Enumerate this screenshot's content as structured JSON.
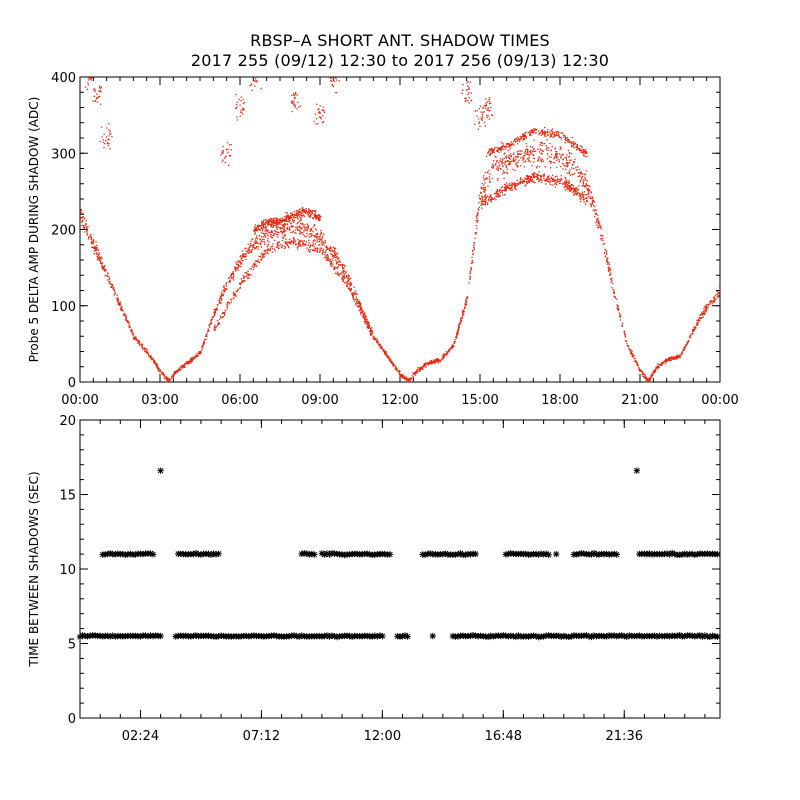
{
  "title_line1": "RBSP–A SHORT ANT. SHADOW TIMES",
  "title_line2": "2017 255 (09/12) 12:30 to 2017 256 (09/13) 12:30",
  "colors": {
    "top_points": "#e8280f",
    "bottom_points": "#000000",
    "axes": "#000000"
  },
  "chart_data": [
    {
      "type": "scatter",
      "ylabel": "Probe 5 DELTA AMP DURING SHADOW (ADC)",
      "xlabel": "",
      "xlim": [
        0,
        24
      ],
      "ylim": [
        0,
        400
      ],
      "x_unit": "hours",
      "xtick_values": [
        0,
        3,
        6,
        9,
        12,
        15,
        18,
        21,
        24
      ],
      "xtick_labels": [
        "00:00",
        "03:00",
        "06:00",
        "09:00",
        "12:00",
        "15:00",
        "18:00",
        "21:00",
        "00:00"
      ],
      "ytick_values": [
        0,
        100,
        200,
        300,
        400
      ],
      "ytick_labels": [
        "0",
        "100",
        "200",
        "300",
        "400"
      ],
      "marker": "dot",
      "color": "#e8280f",
      "series": [
        {
          "name": "main",
          "x": [
            0,
            0.5,
            1.0,
            1.5,
            2.0,
            2.5,
            3.0,
            3.3,
            3.6,
            4.0,
            4.5,
            5.0,
            5.5,
            6.0,
            6.5,
            7.0,
            7.5,
            8.0,
            8.5,
            9.0,
            9.5,
            10.0,
            10.5,
            11.0,
            11.5,
            12.0,
            12.3,
            12.6,
            13.0,
            13.5,
            14.0,
            14.5,
            15.0,
            15.5,
            16.0,
            16.5,
            17.0,
            17.5,
            18.0,
            18.5,
            19.0,
            19.5,
            20.0,
            20.5,
            21.0,
            21.3,
            21.6,
            22.0,
            22.5,
            23.0,
            23.5,
            24.0
          ],
          "y": [
            220,
            180,
            140,
            100,
            60,
            40,
            15,
            2,
            15,
            25,
            40,
            90,
            130,
            160,
            180,
            195,
            200,
            205,
            200,
            190,
            170,
            140,
            100,
            60,
            35,
            10,
            2,
            15,
            25,
            30,
            50,
            110,
            250,
            280,
            290,
            295,
            300,
            300,
            295,
            285,
            260,
            200,
            120,
            50,
            15,
            2,
            20,
            30,
            35,
            70,
            100,
            120
          ]
        },
        {
          "name": "lower_band",
          "x": [
            5.0,
            6.0,
            7.0,
            8.0,
            9.0,
            10.0,
            11.0,
            15.0,
            16.0,
            17.0,
            18.0,
            19.0
          ],
          "y": [
            70,
            130,
            175,
            185,
            175,
            130,
            60,
            235,
            255,
            270,
            265,
            240
          ]
        },
        {
          "name": "upper_band",
          "x": [
            6.5,
            7.0,
            7.5,
            8.0,
            8.5,
            9.0,
            15.2,
            16.0,
            17.0,
            18.0,
            19.0
          ],
          "y": [
            200,
            210,
            212,
            220,
            225,
            215,
            300,
            310,
            330,
            325,
            300
          ]
        },
        {
          "name": "high_spikes",
          "x": [
            0.3,
            0.6,
            1.0,
            5.5,
            6.0,
            6.5,
            8.0,
            9.0,
            9.5,
            14.5,
            15.0,
            15.3
          ],
          "y": [
            400,
            380,
            320,
            300,
            360,
            400,
            370,
            350,
            400,
            380,
            350,
            360
          ]
        }
      ]
    },
    {
      "type": "scatter",
      "ylabel": "TIME BETWEEN SHADOWS (SEC)",
      "xlabel": "",
      "xlim": [
        0,
        25.4
      ],
      "ylim": [
        0,
        20
      ],
      "x_unit": "hours",
      "xtick_values": [
        2.4,
        7.2,
        12.0,
        16.8,
        21.6
      ],
      "xtick_labels": [
        "02:24",
        "07:12",
        "12:00",
        "16:48",
        "21:36"
      ],
      "ytick_values": [
        0,
        5,
        10,
        15,
        20
      ],
      "ytick_labels": [
        "0",
        "5",
        "10",
        "15",
        "20"
      ],
      "marker": "asterisk",
      "color": "#000000",
      "series": [
        {
          "name": "base_interval",
          "value": 5.5,
          "segments": [
            [
              0,
              3.3
            ],
            [
              3.8,
              12.0
            ],
            [
              12.6,
              13.0
            ],
            [
              14.8,
              25.4
            ]
          ],
          "isolated_x": [
            14.0
          ]
        },
        {
          "name": "double_interval",
          "value": 11,
          "segments": [
            [
              0.9,
              3.0
            ],
            [
              3.9,
              5.5
            ],
            [
              8.8,
              9.3
            ],
            [
              9.6,
              12.3
            ],
            [
              13.6,
              15.7
            ],
            [
              16.9,
              18.7
            ],
            [
              19.6,
              21.4
            ],
            [
              22.2,
              25.4
            ]
          ],
          "isolated_x": [
            11.9,
            18.9,
            22.5
          ]
        },
        {
          "name": "outliers",
          "x": [
            3.2,
            22.1
          ],
          "y": [
            16.6,
            16.6
          ]
        }
      ]
    }
  ]
}
